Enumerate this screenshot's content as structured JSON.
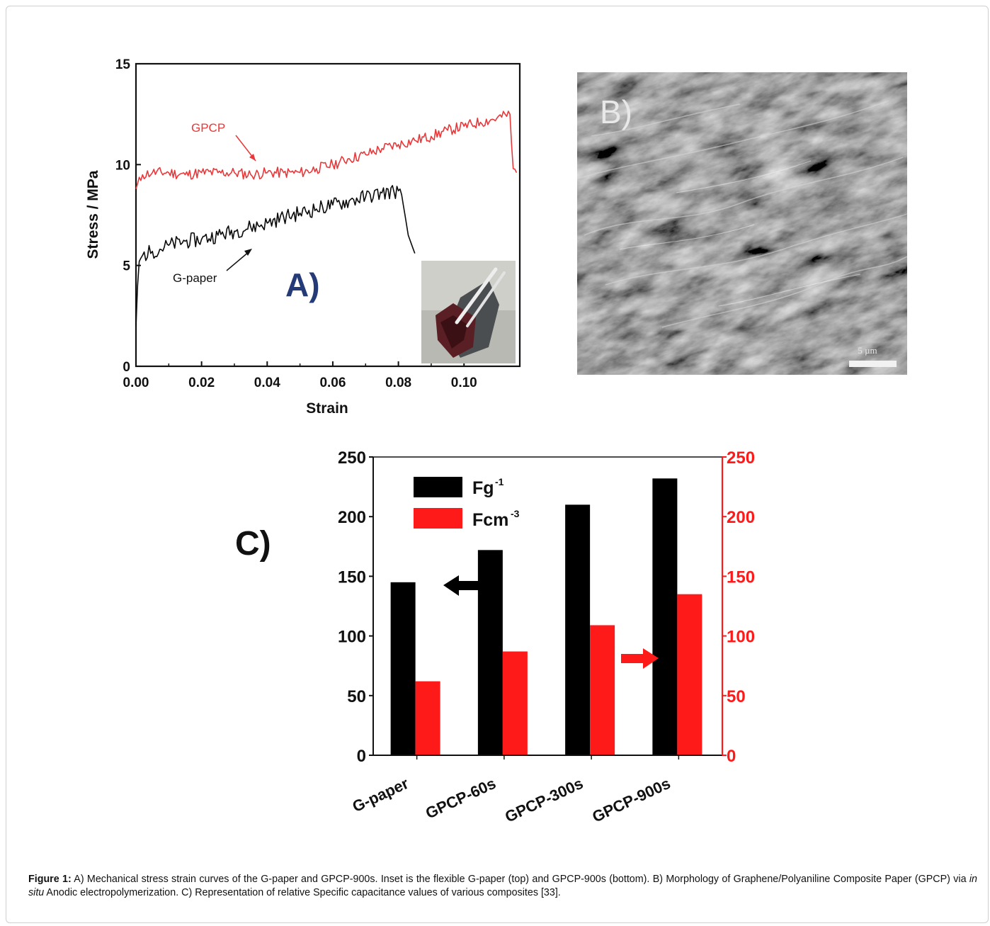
{
  "figure": {
    "caption_label": "Figure 1:",
    "caption_part1": " A) Mechanical stress strain curves of the G-paper and GPCP-900s. Inset is the flexible G-paper (top) and GPCP-900s (bottom). B) Morphology of Graphene/Polyaniline Composite Paper (GPCP) via ",
    "caption_italic": "in situ",
    "caption_part2": " Anodic electropolymerization. C) Representation of relative Specific capacitance values of various composites [33]."
  },
  "panel_b": {
    "label": "B)",
    "scale_bar_text": "5 µm"
  },
  "colors": {
    "gpcp": "#e8383a",
    "gpaper": "#0a0a0a",
    "fcm_bar": "#ff1a1a",
    "fg_bar": "#000000",
    "right_axis": "#ff1a1a"
  },
  "chart_data": [
    {
      "type": "line",
      "panel_label": "A)",
      "xlabel": "Strain",
      "ylabel": "Stress / MPa",
      "xlim": [
        0,
        0.117
      ],
      "ylim": [
        0,
        15
      ],
      "x_ticks": [
        "0.00",
        "0.02",
        "0.04",
        "0.06",
        "0.08",
        "0.10"
      ],
      "y_ticks": [
        "0",
        "5",
        "10",
        "15"
      ],
      "annotations": [
        "GPCP",
        "G-paper"
      ],
      "series": [
        {
          "name": "GPCP",
          "x": [
            0,
            0.002,
            0.005,
            0.01,
            0.015,
            0.02,
            0.025,
            0.03,
            0.035,
            0.04,
            0.045,
            0.05,
            0.055,
            0.06,
            0.065,
            0.07,
            0.075,
            0.08,
            0.085,
            0.09,
            0.095,
            0.1,
            0.105,
            0.11,
            0.114,
            0.1145,
            0.115,
            0.116
          ],
          "y": [
            8.8,
            9.5,
            9.6,
            9.6,
            9.5,
            9.6,
            9.6,
            9.6,
            9.5,
            9.6,
            9.6,
            9.6,
            9.8,
            10.0,
            10.3,
            10.5,
            10.8,
            11.0,
            11.2,
            11.4,
            11.7,
            11.9,
            12.1,
            12.3,
            12.5,
            11.0,
            9.8,
            9.6
          ]
        },
        {
          "name": "G-paper",
          "x": [
            0,
            0.0005,
            0.001,
            0.002,
            0.005,
            0.01,
            0.015,
            0.02,
            0.025,
            0.03,
            0.035,
            0.04,
            0.045,
            0.05,
            0.055,
            0.06,
            0.065,
            0.07,
            0.075,
            0.08,
            0.081,
            0.083,
            0.085
          ],
          "y": [
            2.0,
            4.0,
            5.2,
            5.5,
            5.7,
            6.0,
            6.2,
            6.3,
            6.5,
            6.7,
            6.9,
            7.1,
            7.4,
            7.6,
            7.8,
            8.0,
            8.2,
            8.4,
            8.6,
            8.7,
            8.5,
            6.5,
            5.6
          ]
        }
      ]
    },
    {
      "type": "bar",
      "panel_label": "C)",
      "categories": [
        "G-paper",
        "GPCP-60s",
        "GPCP-300s",
        "GPCP-900s"
      ],
      "ylim": [
        0,
        250
      ],
      "y_ticks": [
        "0",
        "50",
        "100",
        "150",
        "200",
        "250"
      ],
      "y2lim": [
        0,
        250
      ],
      "y2_ticks": [
        "0",
        "50",
        "100",
        "150",
        "200",
        "250"
      ],
      "legend_position": "top-left",
      "series": [
        {
          "name": "Fg",
          "superscript": "-1",
          "values": [
            145,
            172,
            210,
            232
          ],
          "axis": "left"
        },
        {
          "name": "Fcm",
          "superscript": "-3",
          "values": [
            62,
            87,
            109,
            135
          ],
          "axis": "right"
        }
      ]
    }
  ]
}
